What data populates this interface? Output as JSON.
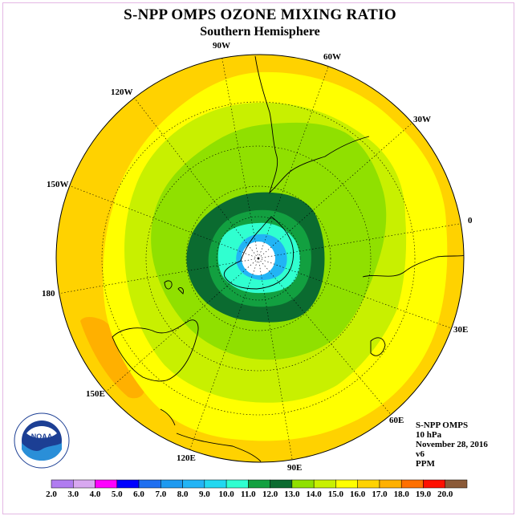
{
  "title": "S-NPP OMPS OZONE MIXING RATIO",
  "subtitle": "Southern Hemisphere",
  "longitude_labels": [
    "90W",
    "60W",
    "30W",
    "0",
    "30E",
    "60E",
    "90E",
    "120E",
    "150E",
    "180",
    "150W",
    "120W"
  ],
  "info": {
    "instrument": "S-NPP OMPS",
    "level": "10 hPa",
    "date": "November 28, 2016",
    "version": "v6",
    "units": "PPM"
  },
  "logo": {
    "text": "NOAA",
    "ring_text": "NATIONAL OCEANIC AND ATMOSPHERIC ADMINISTRATION · U.S. DEPARTMENT OF COMMERCE"
  },
  "legend": {
    "ticks": [
      "2.0",
      "3.0",
      "4.0",
      "5.0",
      "6.0",
      "7.0",
      "8.0",
      "9.0",
      "10.0",
      "11.0",
      "12.0",
      "13.0",
      "14.0",
      "15.0",
      "16.0",
      "17.0",
      "18.0",
      "19.0",
      "20.0"
    ],
    "colors": [
      "#b07cf0",
      "#d8a8f0",
      "#ff00ff",
      "#0000ff",
      "#1f6ff0",
      "#1e9af0",
      "#22b4f5",
      "#22d8f0",
      "#30ffd0",
      "#12a040",
      "#0b6b30",
      "#90e000",
      "#c8f000",
      "#ffff00",
      "#ffd200",
      "#ffb000",
      "#ff7000",
      "#ff1000",
      "#8b5a38"
    ]
  },
  "map_colors": {
    "background": "#ffffff",
    "band_15_16": "#ffd200",
    "band_14_15": "#ffff00",
    "band_13_14": "#c8f000",
    "band_12_13": "#90e000",
    "band_11_12": "#0b6b30",
    "band_10_11": "#12a040",
    "band_9_10": "#30ffd0",
    "band_8_9": "#22b4f5",
    "band_16_17": "#ffb000",
    "band_17_18": "#ff7000"
  }
}
